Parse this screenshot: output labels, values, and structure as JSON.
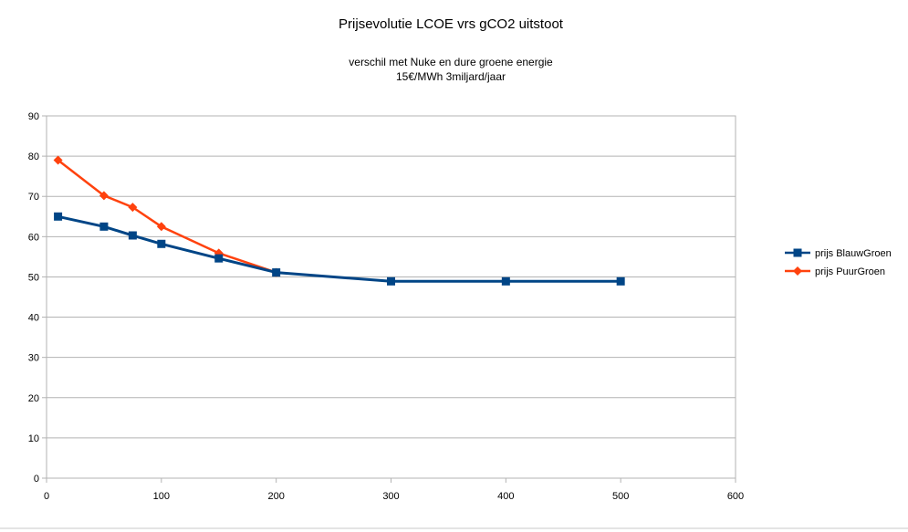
{
  "chart_data": {
    "type": "line",
    "title": "Prijsevolutie LCOE vrs gCO2 uitstoot",
    "subtitle_lines": [
      "verschil met Nuke en dure groene energie",
      "15€/MWh 3miljard/jaar"
    ],
    "xlabel": "",
    "ylabel": "",
    "xlim": [
      0,
      600
    ],
    "ylim": [
      0,
      90
    ],
    "x_ticks": [
      "0",
      "100",
      "200",
      "300",
      "400",
      "500",
      "600"
    ],
    "y_ticks": [
      "0",
      "10",
      "20",
      "30",
      "40",
      "50",
      "60",
      "70",
      "80",
      "90"
    ],
    "grid": true,
    "legend_position": "right",
    "series": [
      {
        "name": "prijs BlauwGroen",
        "color": "#004586",
        "marker": "square",
        "x": [
          10,
          50,
          75,
          100,
          150,
          200,
          300,
          400,
          500
        ],
        "y": [
          65,
          62.5,
          60.3,
          58.2,
          54.6,
          51.1,
          48.9,
          48.9,
          48.9
        ]
      },
      {
        "name": "prijs PuurGroen",
        "color": "#ff420e",
        "marker": "diamond",
        "x": [
          10,
          50,
          75,
          100,
          150,
          200
        ],
        "y": [
          79,
          70.2,
          67.3,
          62.5,
          55.9,
          51.1
        ]
      }
    ]
  }
}
